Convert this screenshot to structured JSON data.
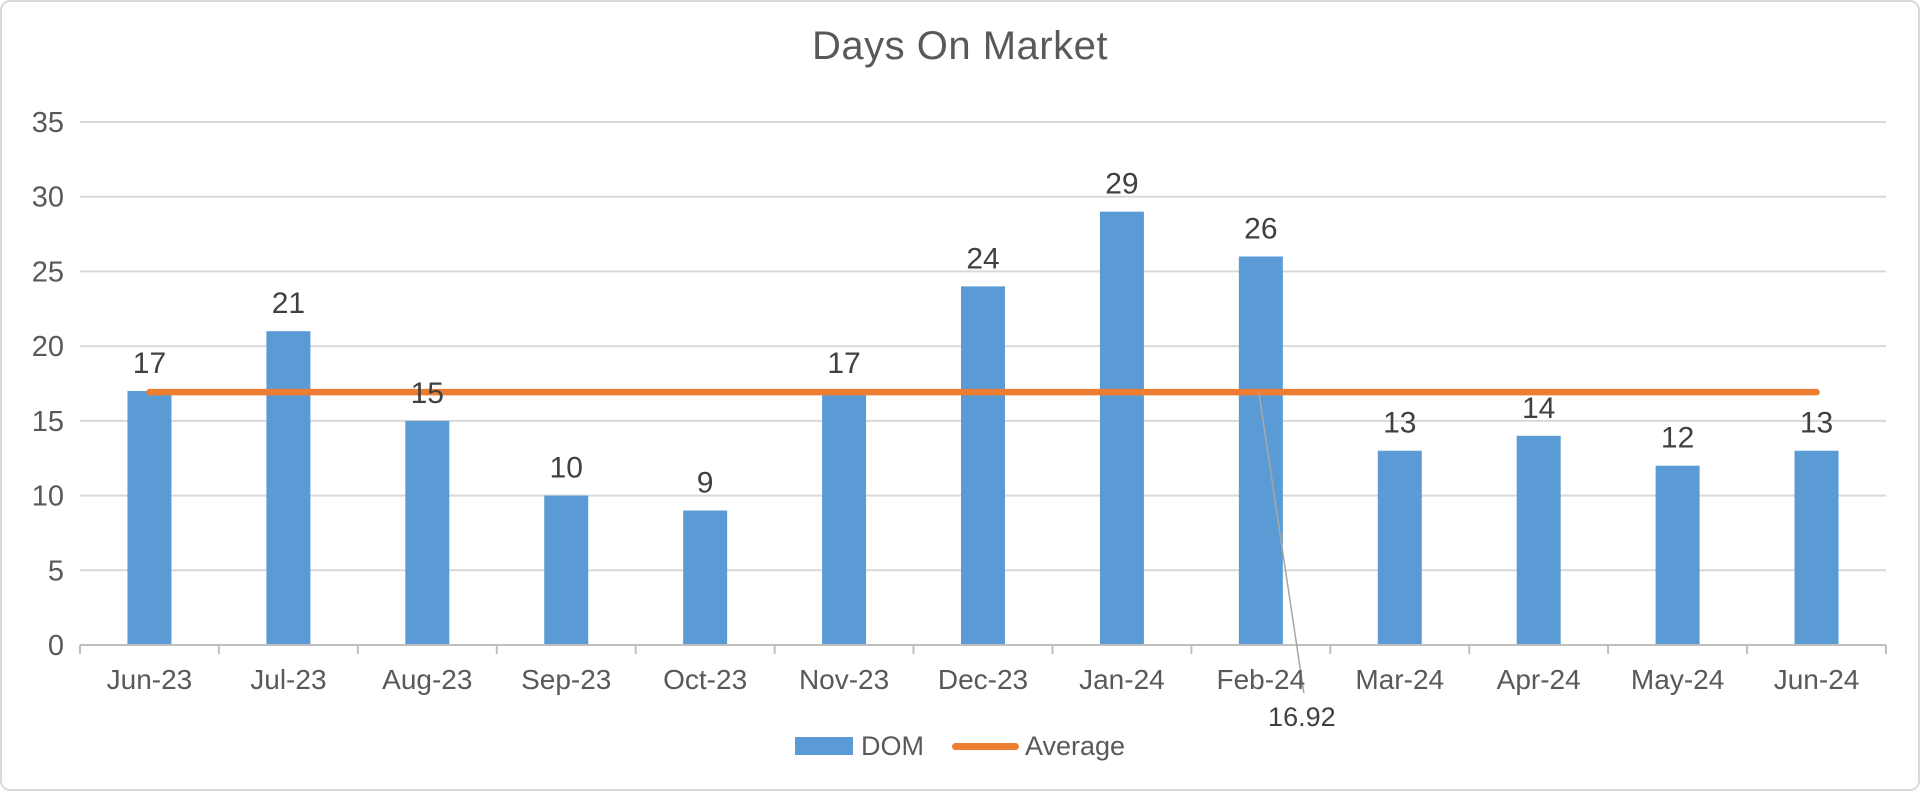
{
  "chart_data": {
    "type": "bar",
    "title": "Days On Market",
    "categories": [
      "Jun-23",
      "Jul-23",
      "Aug-23",
      "Sep-23",
      "Oct-23",
      "Nov-23",
      "Dec-23",
      "Jan-24",
      "Feb-24",
      "Mar-24",
      "Apr-24",
      "May-24",
      "Jun-24"
    ],
    "series": [
      {
        "name": "DOM",
        "type": "bar",
        "color": "#5B9BD5",
        "values": [
          17,
          21,
          15,
          10,
          9,
          17,
          24,
          29,
          26,
          13,
          14,
          12,
          13
        ],
        "data_labels": [
          "17",
          "21",
          "15",
          "10",
          "9",
          "17",
          "24",
          "29",
          "26",
          "13",
          "14",
          "12",
          "13"
        ]
      },
      {
        "name": "Average",
        "type": "line",
        "color": "#ED7D31",
        "value": 16.92
      }
    ],
    "xlabel": "",
    "ylabel": "",
    "ylim": [
      0,
      35
    ],
    "y_axis": {
      "min": 0,
      "max": 35,
      "step": 5,
      "ticks": [
        "0",
        "5",
        "10",
        "15",
        "20",
        "25",
        "30",
        "35"
      ]
    },
    "grid": "horizontal",
    "legend_position": "bottom",
    "legend": [
      {
        "label": "DOM",
        "marker": "bar",
        "color": "#5B9BD5"
      },
      {
        "label": "Average",
        "marker": "line",
        "color": "#ED7D31"
      }
    ],
    "annotation": {
      "text": "16.92",
      "attached_series": "Average",
      "category_index": 8
    },
    "colors": {
      "bar": "#5B9BD5",
      "average_line": "#ED7D31",
      "gridline": "#D9D9D9",
      "axis_line": "#BFBFBF",
      "axis_text": "#595959",
      "data_label_text": "#404040",
      "title_text": "#595959",
      "leader_line": "#A6A6A6",
      "border": "#D9D9D9",
      "background": "#FFFFFF"
    }
  }
}
